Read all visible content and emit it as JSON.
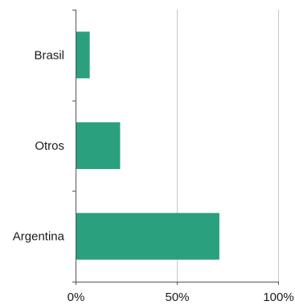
{
  "chart_data": {
    "type": "bar",
    "orientation": "horizontal",
    "title": "",
    "xlabel": "",
    "ylabel": "",
    "categories": [
      "Brasil",
      "Otros",
      "Argentina"
    ],
    "values": [
      0.07,
      0.22,
      0.71
    ],
    "xlim": [
      0,
      1
    ],
    "xticks": [
      0,
      0.5,
      1
    ],
    "xtick_labels": [
      "0%",
      "50%",
      "100%"
    ],
    "grid": "vertical",
    "bar_color": "#2aa07f",
    "grid_color": "#c8c8c8",
    "axis_color": "#555555"
  }
}
